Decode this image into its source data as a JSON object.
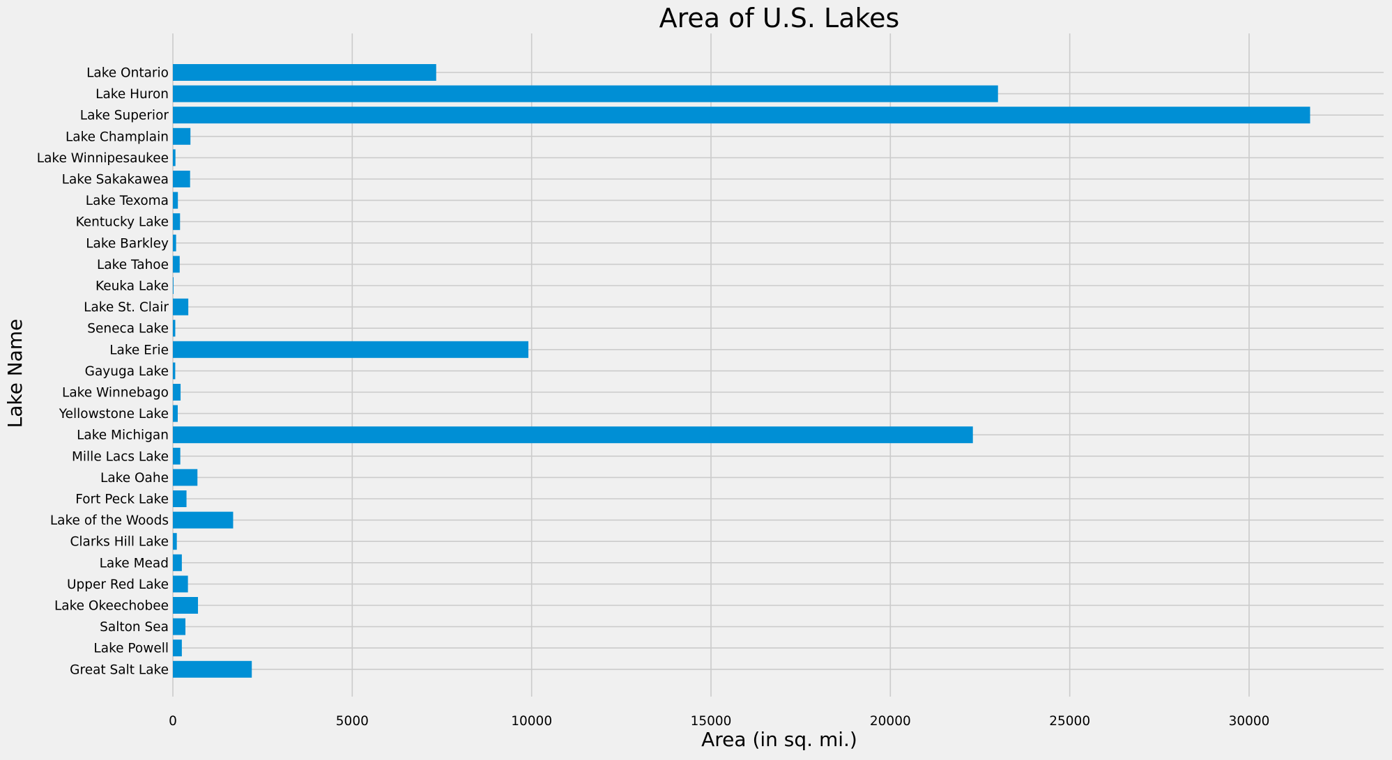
{
  "chart_data": {
    "type": "bar",
    "orientation": "horizontal",
    "title": "Area of U.S. Lakes",
    "xlabel": "Area (in sq. mi.)",
    "ylabel": "Lake Name",
    "xlim": [
      0,
      33750
    ],
    "xticks": [
      0,
      5000,
      10000,
      15000,
      20000,
      25000,
      30000
    ],
    "grid": true,
    "bar_color": "#008fd5",
    "background_color": "#f0f0f0",
    "grid_color": "#cbcbcb",
    "categories": [
      "Lake Ontario",
      "Lake Huron",
      "Lake Superior",
      "Lake Champlain",
      "Lake Winnipesaukee",
      "Lake Sakakawea",
      "Lake Texoma",
      "Kentucky Lake",
      "Lake Barkley",
      "Lake Tahoe",
      "Keuka Lake",
      "Lake St. Clair",
      "Seneca Lake",
      "Lake Erie",
      "Gayuga Lake",
      "Lake Winnebago",
      "Yellowstone Lake",
      "Lake Michigan",
      "Mille Lacs Lake",
      "Lake Oahe",
      "Fort Peck Lake",
      "Lake of the Woods",
      "Clarks Hill Lake",
      "Lake Mead",
      "Upper Red Lake",
      "Lake Okeechobee",
      "Salton Sea",
      "Lake Powell",
      "Great Salt Lake"
    ],
    "values": [
      7340,
      23000,
      31700,
      490,
      72,
      480,
      140,
      200,
      90,
      190,
      18,
      430,
      67,
      9910,
      66,
      215,
      136,
      22300,
      207,
      685,
      380,
      1680,
      110,
      250,
      420,
      700,
      350,
      250,
      2200
    ]
  }
}
